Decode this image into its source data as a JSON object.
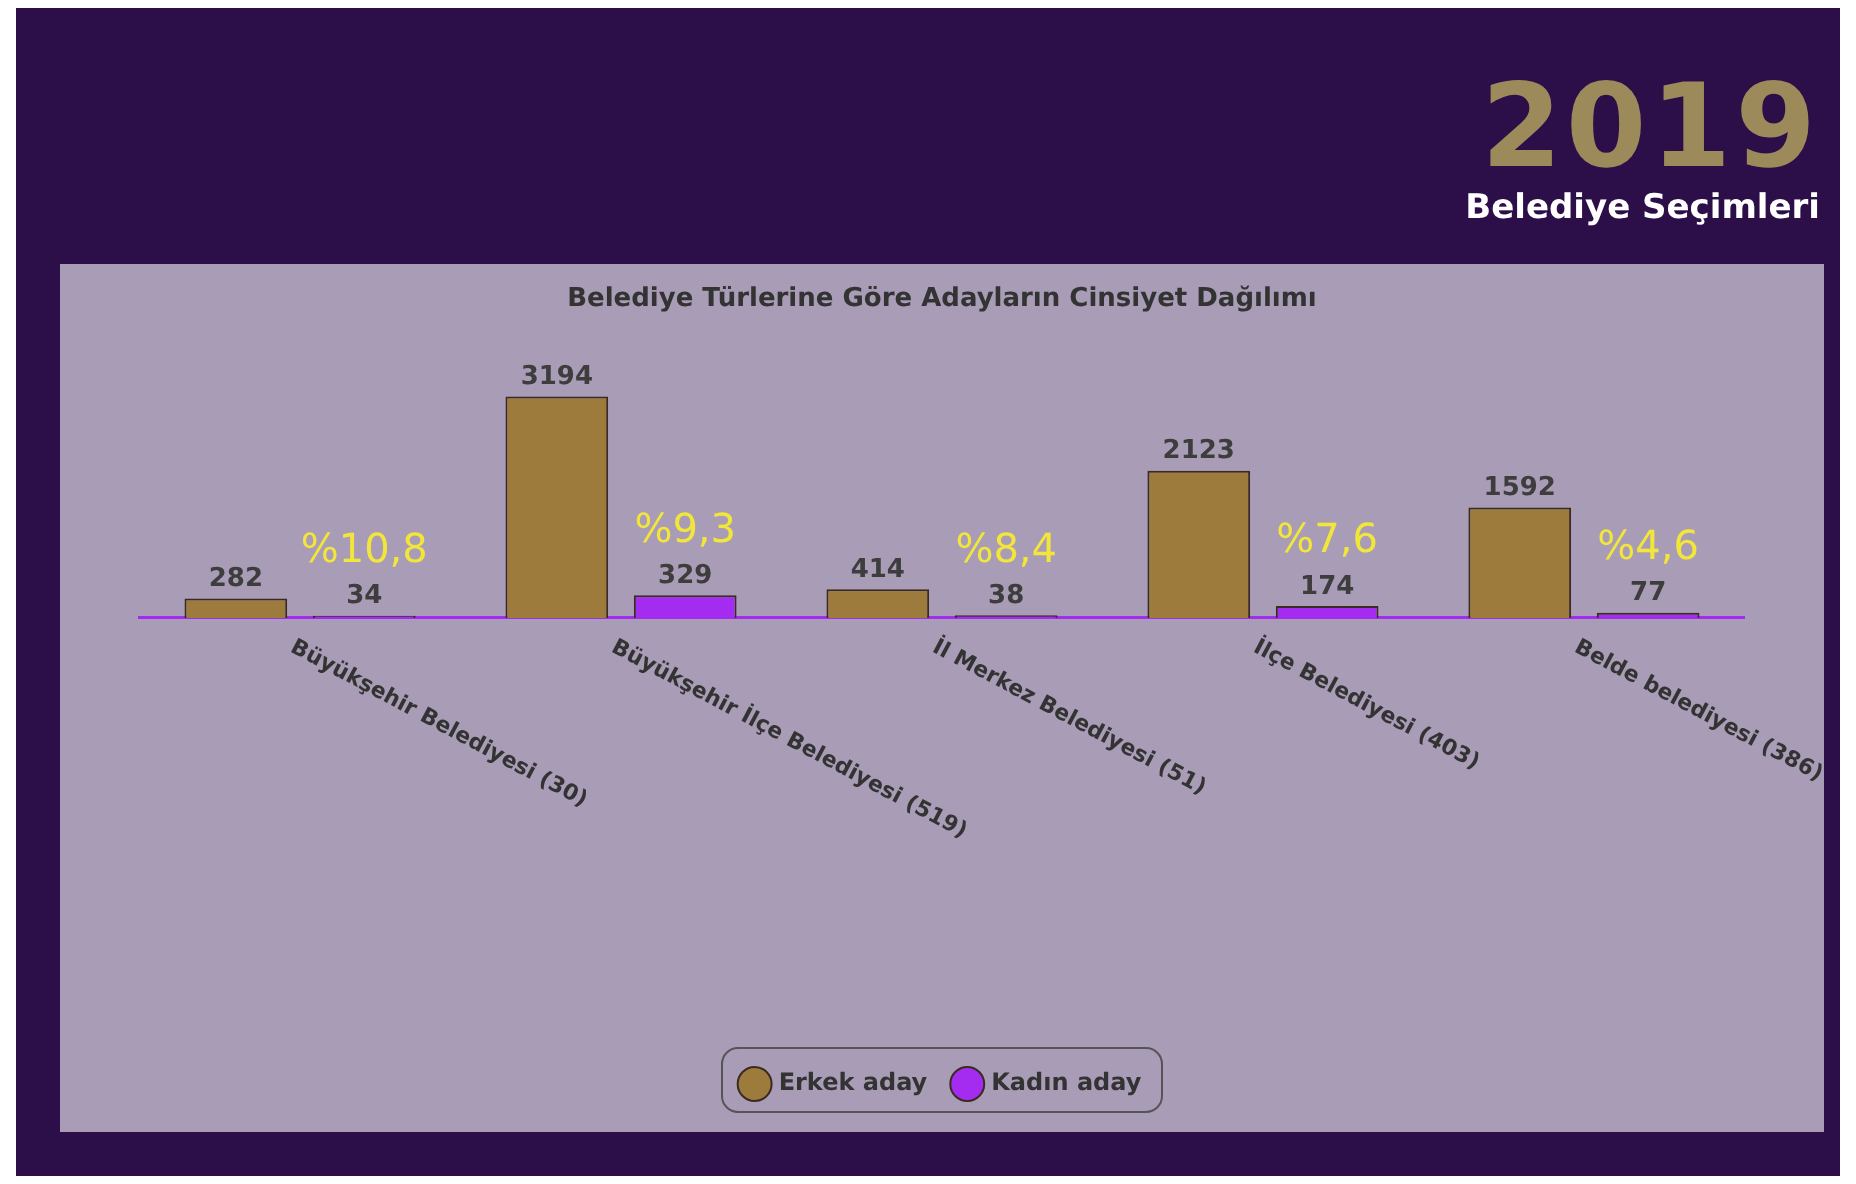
{
  "chart_data": {
    "type": "bar",
    "title": "Belediye Türlerine Göre Adayların Cinsiyet Dağılımı",
    "categories": [
      "Büyükşehir Belediyesi (30)",
      "Büyükşehir İlçe Belediyesi (519)",
      "İl Merkez Belediyesi (51)",
      "İlçe Belediyesi (403)",
      "Belde belediyesi (386)"
    ],
    "series": [
      {
        "name": "Erkek aday",
        "color": "#9c7b3c",
        "values": [
          282,
          3194,
          414,
          2123,
          1592
        ]
      },
      {
        "name": "Kadın aday",
        "color": "#a32cf0",
        "values": [
          34,
          329,
          38,
          174,
          77
        ]
      }
    ],
    "data_labels": true,
    "legend": "bottom",
    "annotations": [
      "2019",
      "Belediye Seçimleri",
      "%10,8",
      "%9,3",
      "%8,4",
      "%7,6",
      "%4,6"
    ]
  }
}
